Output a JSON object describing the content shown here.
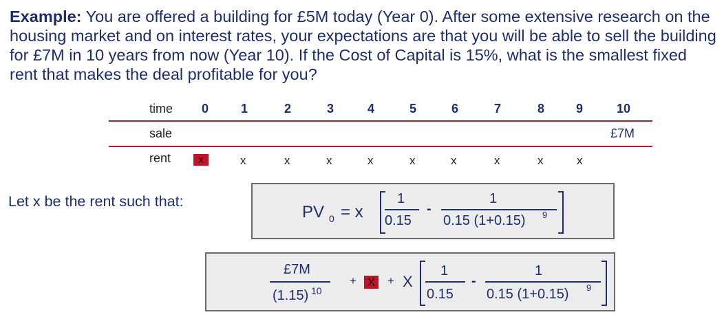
{
  "problem": {
    "bold_lead": "Example:",
    "text": " You are offered a building for £5M today (Year 0).  After some extensive research on the housing market and on interest rates, your expectations are that you will be able to sell the building for £7M in 10 years from now (Year 10).  If the Cost of Capital is 15%, what is the smallest fixed rent that makes the deal profitable for you?"
  },
  "timeline": {
    "time_label": "time",
    "years": [
      "0",
      "1",
      "2",
      "3",
      "4",
      "5",
      "6",
      "7",
      "8",
      "9",
      "10"
    ],
    "sale_label": "sale",
    "sale_value": "£7M",
    "rent_label": "rent",
    "rent_marks": [
      "x",
      "x",
      "x",
      "x",
      "x",
      "x",
      "x",
      "x",
      "x",
      "x"
    ],
    "accent_color": "#c0132a"
  },
  "let_text": "Let x be the rent such that:",
  "formula1": {
    "pv": "PV",
    "sub": "0",
    "eq": "= x",
    "num1": "1",
    "den1": "0.15",
    "minus": "-",
    "num2": "1",
    "den2": "0.15 (1+0.15)",
    "exp": "9"
  },
  "formula2": {
    "num": "£7M",
    "den": "(1.15)",
    "exp": "10",
    "plus1": "+",
    "boxed_x": "X",
    "plus2": "+",
    "x": "X",
    "num1": "1",
    "den1": "0.15",
    "minus": "-",
    "num2": "1",
    "den2": "0.15 (1+0.15)",
    "exp2": "9"
  }
}
